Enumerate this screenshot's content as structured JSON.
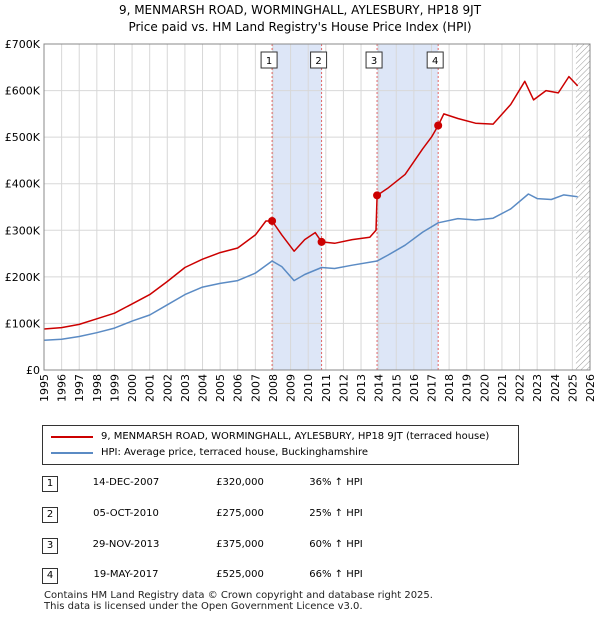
{
  "title_line1": "9, MENMARSH ROAD, WORMINGHALL, AYLESBURY, HP18 9JT",
  "title_line2": "Price paid vs. HM Land Registry's House Price Index (HPI)",
  "legend": {
    "red_label": "9, MENMARSH ROAD, WORMINGHALL, AYLESBURY, HP18 9JT (terraced house)",
    "blue_label": "HPI: Average price, terraced house, Buckinghamshire"
  },
  "colors": {
    "red": "#cc0000",
    "blue": "#5b8bc4",
    "band": "#dde6f7",
    "grid": "#d8d8d8"
  },
  "sales": [
    {
      "num": "1",
      "date": "14-DEC-2007",
      "price": "£320,000",
      "hpi": "36% ↑ HPI"
    },
    {
      "num": "2",
      "date": "05-OCT-2010",
      "price": "£275,000",
      "hpi": "25% ↑ HPI"
    },
    {
      "num": "3",
      "date": "29-NOV-2013",
      "price": "£375,000",
      "hpi": "60% ↑ HPI"
    },
    {
      "num": "4",
      "date": "19-MAY-2017",
      "price": "£525,000",
      "hpi": "66% ↑ HPI"
    }
  ],
  "footer": {
    "line1": "Contains HM Land Registry data © Crown copyright and database right 2025.",
    "line2": "This data is licensed under the Open Government Licence v3.0."
  },
  "chart_data": {
    "type": "line",
    "title": "9, MENMARSH ROAD, WORMINGHALL, AYLESBURY, HP18 9JT",
    "subtitle": "Price paid vs. HM Land Registry's House Price Index (HPI)",
    "xlabel": "",
    "ylabel": "",
    "xlim": [
      1995,
      2026
    ],
    "ylim": [
      0,
      700000
    ],
    "y_ticks": [
      0,
      100000,
      200000,
      300000,
      400000,
      500000,
      600000,
      700000
    ],
    "y_tick_labels": [
      "£0",
      "£100K",
      "£200K",
      "£300K",
      "£400K",
      "£500K",
      "£600K",
      "£700K"
    ],
    "x_ticks": [
      1995,
      1996,
      1997,
      1998,
      1999,
      2000,
      2001,
      2002,
      2003,
      2004,
      2005,
      2006,
      2007,
      2008,
      2009,
      2010,
      2011,
      2012,
      2013,
      2014,
      2015,
      2016,
      2017,
      2018,
      2019,
      2020,
      2021,
      2022,
      2023,
      2024,
      2025,
      2026
    ],
    "grid": true,
    "shaded_periods": [
      [
        2007.95,
        2010.76
      ],
      [
        2013.91,
        2017.38
      ]
    ],
    "hatched_from": 2025.2,
    "series": [
      {
        "name": "9, MENMARSH ROAD, WORMINGHALL, AYLESBURY, HP18 9JT (terraced house)",
        "color": "#cc0000",
        "points": [
          [
            1995.0,
            88000
          ],
          [
            1996.0,
            91000
          ],
          [
            1997.0,
            98000
          ],
          [
            1998.0,
            110000
          ],
          [
            1999.0,
            122000
          ],
          [
            2000.0,
            142000
          ],
          [
            2001.0,
            162000
          ],
          [
            2002.0,
            190000
          ],
          [
            2003.0,
            220000
          ],
          [
            2004.0,
            238000
          ],
          [
            2005.0,
            252000
          ],
          [
            2006.0,
            262000
          ],
          [
            2007.0,
            290000
          ],
          [
            2007.6,
            320000
          ],
          [
            2007.95,
            320000
          ],
          [
            2008.5,
            290000
          ],
          [
            2009.2,
            255000
          ],
          [
            2009.8,
            280000
          ],
          [
            2010.4,
            295000
          ],
          [
            2010.76,
            275000
          ],
          [
            2011.5,
            272000
          ],
          [
            2012.5,
            280000
          ],
          [
            2013.5,
            285000
          ],
          [
            2013.85,
            300000
          ],
          [
            2013.91,
            375000
          ],
          [
            2014.5,
            390000
          ],
          [
            2015.5,
            420000
          ],
          [
            2016.5,
            475000
          ],
          [
            2017.0,
            500000
          ],
          [
            2017.38,
            525000
          ],
          [
            2017.7,
            550000
          ],
          [
            2018.5,
            540000
          ],
          [
            2019.5,
            530000
          ],
          [
            2020.5,
            528000
          ],
          [
            2021.5,
            570000
          ],
          [
            2022.3,
            620000
          ],
          [
            2022.8,
            580000
          ],
          [
            2023.5,
            600000
          ],
          [
            2024.2,
            595000
          ],
          [
            2024.8,
            630000
          ],
          [
            2025.3,
            610000
          ]
        ]
      },
      {
        "name": "HPI: Average price, terraced house, Buckinghamshire",
        "color": "#5b8bc4",
        "points": [
          [
            1995.0,
            64000
          ],
          [
            1996.0,
            66000
          ],
          [
            1997.0,
            72000
          ],
          [
            1998.0,
            80000
          ],
          [
            1999.0,
            90000
          ],
          [
            2000.0,
            105000
          ],
          [
            2001.0,
            118000
          ],
          [
            2002.0,
            140000
          ],
          [
            2003.0,
            162000
          ],
          [
            2004.0,
            178000
          ],
          [
            2005.0,
            186000
          ],
          [
            2006.0,
            192000
          ],
          [
            2007.0,
            208000
          ],
          [
            2007.95,
            234000
          ],
          [
            2008.5,
            222000
          ],
          [
            2009.2,
            192000
          ],
          [
            2009.8,
            205000
          ],
          [
            2010.76,
            220000
          ],
          [
            2011.5,
            218000
          ],
          [
            2012.5,
            225000
          ],
          [
            2013.91,
            234000
          ],
          [
            2014.5,
            246000
          ],
          [
            2015.5,
            268000
          ],
          [
            2016.5,
            296000
          ],
          [
            2017.38,
            316000
          ],
          [
            2018.5,
            325000
          ],
          [
            2019.5,
            322000
          ],
          [
            2020.5,
            326000
          ],
          [
            2021.5,
            346000
          ],
          [
            2022.5,
            378000
          ],
          [
            2023.0,
            368000
          ],
          [
            2023.8,
            366000
          ],
          [
            2024.5,
            376000
          ],
          [
            2025.3,
            372000
          ]
        ]
      }
    ],
    "markers": [
      {
        "label": "1",
        "x": 2007.95,
        "y": 320000
      },
      {
        "label": "2",
        "x": 2010.76,
        "y": 275000
      },
      {
        "label": "3",
        "x": 2013.91,
        "y": 375000
      },
      {
        "label": "4",
        "x": 2017.38,
        "y": 525000
      }
    ]
  }
}
